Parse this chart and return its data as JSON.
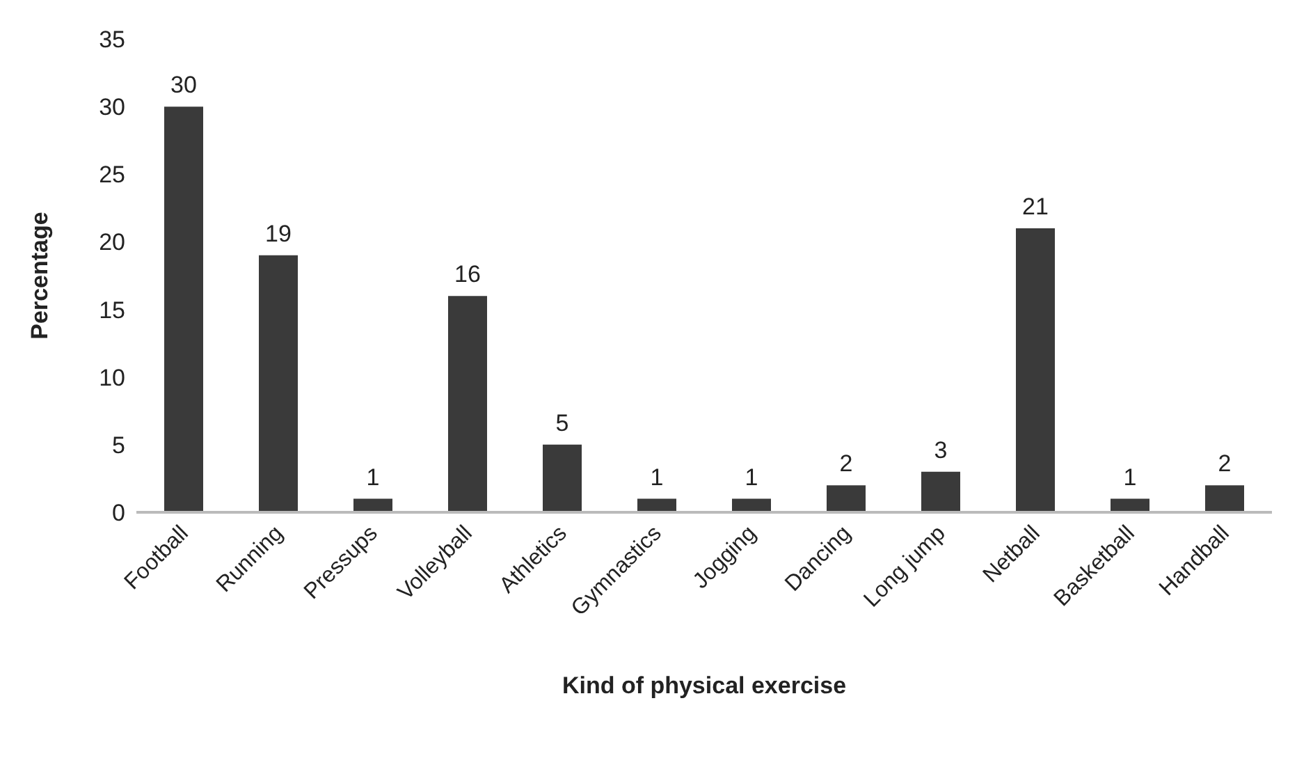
{
  "chart_data": {
    "type": "bar",
    "xlabel": "Kind of physical exercise",
    "ylabel": "Percentage",
    "categories": [
      "Football",
      "Running",
      "Pressups",
      "Volleyball",
      "Athletics",
      "Gymnastics",
      "Jogging",
      "Dancing",
      "Long jump",
      "Netball",
      "Basketball",
      "Handball"
    ],
    "values": [
      30,
      19,
      1,
      16,
      5,
      1,
      1,
      2,
      3,
      21,
      1,
      2
    ],
    "color": "#3a3a3a",
    "ylim": [
      0,
      35
    ],
    "yticks": [
      0,
      5,
      10,
      15,
      20,
      25,
      30,
      35
    ],
    "grid": false,
    "data_labels": true
  }
}
